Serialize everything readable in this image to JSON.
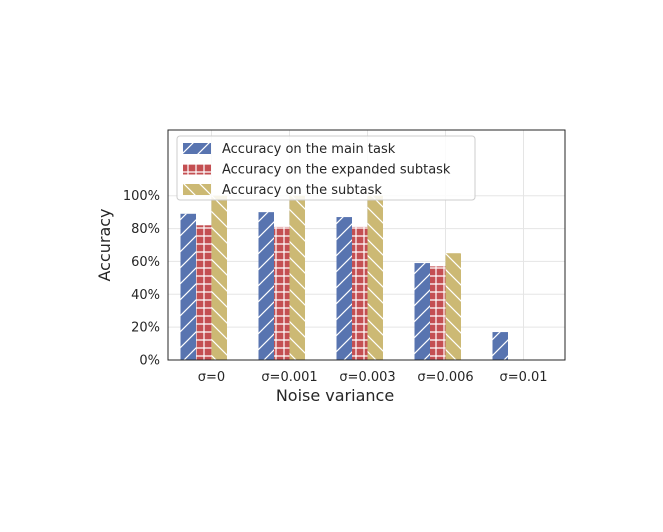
{
  "chart_data": {
    "type": "bar",
    "xlabel": "Noise variance",
    "ylabel": "Accuracy",
    "categories": [
      "σ=0",
      "σ=0.001",
      "σ=0.003",
      "σ=0.006",
      "σ=0.01"
    ],
    "yticks": [
      "0%",
      "20%",
      "40%",
      "60%",
      "80%",
      "100%"
    ],
    "ytick_values": [
      0,
      20,
      40,
      60,
      80,
      100
    ],
    "ylim": [
      0,
      140
    ],
    "grid": true,
    "legend_position": "upper-left",
    "series": [
      {
        "name": "Accuracy on the main task",
        "values": [
          89,
          90,
          87,
          59,
          17
        ],
        "color": "#5874b0",
        "hatch": "forward-slash"
      },
      {
        "name": "Accuracy on the expanded subtask",
        "values": [
          82,
          81,
          81,
          57,
          0
        ],
        "color": "#c44f52",
        "hatch": "grid"
      },
      {
        "name": "Accuracy on the subtask",
        "values": [
          100,
          100,
          100,
          65,
          0
        ],
        "color": "#ccb974",
        "hatch": "back-slash"
      }
    ]
  }
}
